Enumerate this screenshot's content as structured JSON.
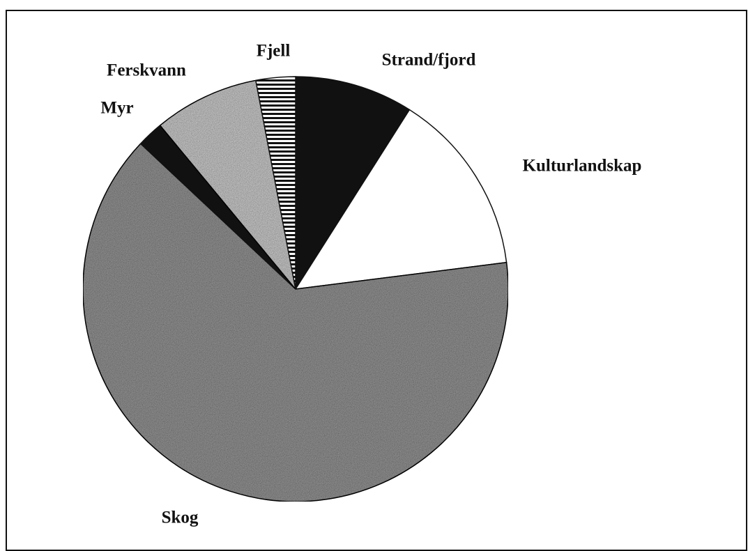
{
  "chart_data": {
    "type": "pie",
    "categories": [
      "Strand/fjord",
      "Kulturlandskap",
      "Skog",
      "Myr",
      "Ferskvann",
      "Fjell"
    ],
    "values": [
      9,
      14,
      64,
      2,
      8,
      3
    ],
    "colors": [
      "#111111",
      "#ffffff",
      "#8a8a8a",
      "#111111",
      "#bdbdbd",
      "#ffffff"
    ],
    "patterns": [
      null,
      null,
      "speckle",
      null,
      "speckle",
      "horizontal-stripes"
    ],
    "start_angle": 0,
    "direction": "clockwise"
  }
}
